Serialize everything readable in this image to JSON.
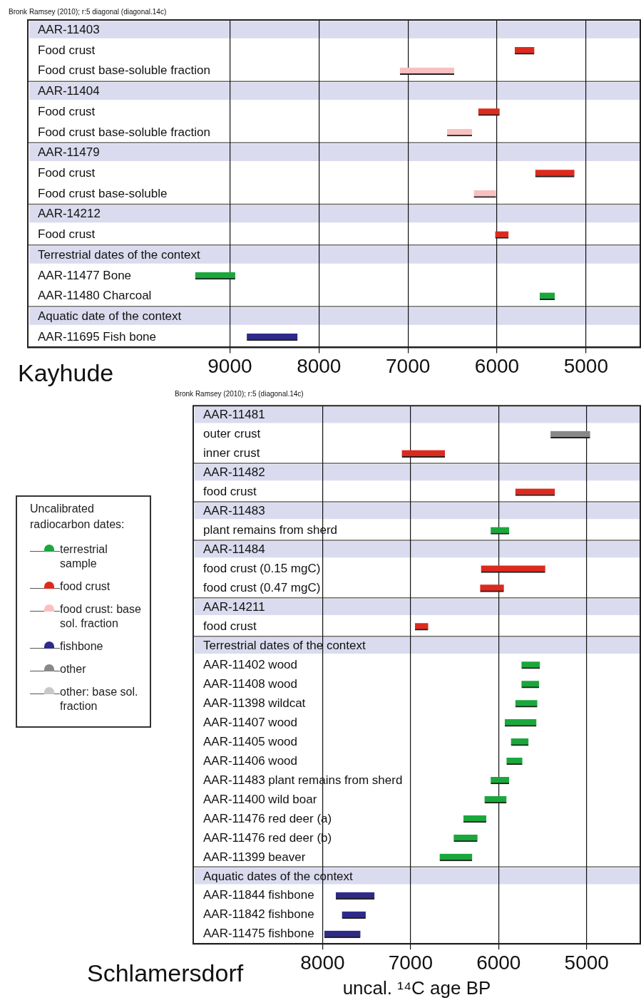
{
  "chart_data": [
    {
      "type": "bar",
      "orientation": "horizontal",
      "title": "Kayhude",
      "subtitle": "Bronk Ramsey (2010); r:5 diagonal (diagonal.14c)",
      "categories": [
        "AAR-11403",
        "Food crust",
        "Food crust base-soluble fraction",
        "AAR-11404",
        "Food crust",
        "Food crust base-soluble fraction",
        "AAR-11479",
        "Food crust",
        "Food crust base-soluble",
        "AAR-14212",
        "Food crust",
        "Terrestrial dates of the context",
        "AAR-11477 Bone",
        "AAR-11480 Charcoal",
        "Aquatic date of the context",
        "AAR-11695 Fish bone"
      ],
      "series": [
        {
          "color": "#dd2a1e",
          "values": [
            null,
            220,
            null,
            null,
            240,
            null,
            null,
            440,
            null,
            null,
            150,
            null,
            null,
            null,
            null,
            null
          ],
          "base": [
            null,
            5580,
            null,
            null,
            5970,
            null,
            null,
            5130,
            null,
            null,
            5870,
            null,
            null,
            null,
            null,
            null
          ]
        },
        {
          "color": "#f9c0c0",
          "values": [
            null,
            null,
            610,
            null,
            null,
            280,
            null,
            null,
            250,
            null,
            null,
            null,
            null,
            null,
            null,
            null
          ],
          "base": [
            null,
            null,
            6480,
            null,
            null,
            6280,
            null,
            null,
            6010,
            null,
            null,
            null,
            null,
            null,
            null,
            null
          ]
        },
        {
          "color": "#1aa83c",
          "values": [
            null,
            null,
            null,
            null,
            null,
            null,
            null,
            null,
            null,
            null,
            null,
            null,
            450,
            170,
            null,
            null
          ],
          "base": [
            null,
            null,
            null,
            null,
            null,
            null,
            null,
            null,
            null,
            null,
            null,
            null,
            8940,
            5350,
            null,
            null
          ]
        },
        {
          "color": "#2e2a8a",
          "values": [
            null,
            null,
            null,
            null,
            null,
            null,
            null,
            null,
            null,
            null,
            null,
            null,
            null,
            null,
            null,
            570
          ],
          "base": [
            null,
            null,
            null,
            null,
            null,
            null,
            null,
            null,
            null,
            null,
            null,
            null,
            null,
            null,
            null,
            8240
          ]
        }
      ],
      "xlim": [
        11270,
        4390
      ],
      "xticks": [
        9000,
        8000,
        7000,
        6000,
        5000
      ],
      "grid": "x",
      "legend": false
    },
    {
      "type": "bar",
      "orientation": "horizontal",
      "title": "Schlamersdorf",
      "subtitle": "Bronk Ramsey (2010); r:5 (diagonal.14c)",
      "xlabel": "uncal. ¹⁴C age BP",
      "legend_title": "Uncalibrated radiocarbon dates:",
      "categories": [
        "AAR-11481",
        "outer crust",
        "inner crust",
        "AAR-11482",
        "food crust",
        "AAR-11483",
        "plant remains from sherd",
        "AAR-11484",
        "food crust (0.15 mgC)",
        "food crust (0.47 mgC)",
        "AAR-14211",
        "food crust",
        "Terrestrial dates of the context",
        "AAR-11402 wood",
        "AAR-11408 wood",
        "AAR-11398 wildcat",
        "AAR-11407 wood",
        "AAR-11405 wood",
        "AAR-11406 wood",
        "AAR-11483 plant remains from sherd",
        "AAR-11400 wild boar",
        "AAR-11476 red deer (a)",
        "AAR-11476 red deer (b)",
        "AAR-11399 beaver",
        "Aquatic dates of the context",
        "AAR-11844 fishbone",
        "AAR-11842 fishbone",
        "AAR-11475 fishbone"
      ],
      "series": [
        {
          "name": "terrestrial sample",
          "color": "#1aa83c",
          "values": [
            null,
            null,
            null,
            null,
            null,
            null,
            210,
            null,
            null,
            null,
            null,
            null,
            null,
            210,
            200,
            250,
            360,
            200,
            180,
            210,
            250,
            260,
            270,
            370,
            null,
            null,
            null,
            null
          ],
          "base": [
            null,
            null,
            null,
            null,
            null,
            null,
            5880,
            null,
            null,
            null,
            null,
            null,
            null,
            5530,
            5540,
            5560,
            5570,
            5660,
            5730,
            5880,
            5910,
            6140,
            6240,
            6300,
            null,
            null,
            null,
            null
          ]
        },
        {
          "name": "food crust",
          "color": "#dd2a1e",
          "values": [
            null,
            null,
            490,
            null,
            450,
            null,
            null,
            null,
            730,
            270,
            null,
            150,
            null,
            null,
            null,
            null,
            null,
            null,
            null,
            null,
            null,
            null,
            null,
            null,
            null,
            null,
            null,
            null
          ],
          "base": [
            null,
            null,
            6610,
            null,
            5360,
            null,
            null,
            null,
            5470,
            5940,
            null,
            6800,
            null,
            null,
            null,
            null,
            null,
            null,
            null,
            null,
            null,
            null,
            null,
            null,
            null,
            null,
            null,
            null
          ]
        },
        {
          "name": "food crust: base sol. fraction",
          "color": "#f9c0c0",
          "values": [
            null,
            null,
            null,
            null,
            null,
            null,
            null,
            null,
            null,
            null,
            null,
            null,
            null,
            null,
            null,
            null,
            null,
            null,
            null,
            null,
            null,
            null,
            null,
            null,
            null,
            null,
            null,
            null
          ]
        },
        {
          "name": "fishbone",
          "color": "#2e2a8a",
          "values": [
            null,
            null,
            null,
            null,
            null,
            null,
            null,
            null,
            null,
            null,
            null,
            null,
            null,
            null,
            null,
            null,
            null,
            null,
            null,
            null,
            null,
            null,
            null,
            null,
            null,
            440,
            270,
            410
          ],
          "base": [
            null,
            null,
            null,
            null,
            null,
            null,
            null,
            null,
            null,
            null,
            null,
            null,
            null,
            null,
            null,
            null,
            null,
            null,
            null,
            null,
            null,
            null,
            null,
            null,
            null,
            7410,
            7510,
            7570
          ]
        },
        {
          "name": "other",
          "color": "#888888",
          "values": [
            null,
            450,
            null,
            null,
            null,
            null,
            null,
            null,
            null,
            null,
            null,
            null,
            null,
            null,
            null,
            null,
            null,
            null,
            null,
            null,
            null,
            null,
            null,
            null,
            null,
            null,
            null,
            null
          ],
          "base": [
            null,
            4960,
            null,
            null,
            null,
            null,
            null,
            null,
            null,
            null,
            null,
            null,
            null,
            null,
            null,
            null,
            null,
            null,
            null,
            null,
            null,
            null,
            null,
            null,
            null,
            null,
            null,
            null
          ]
        },
        {
          "name": "other: base sol. fraction",
          "color": "#c8c8c8",
          "values": [
            null,
            null,
            null,
            null,
            null,
            null,
            null,
            null,
            null,
            null,
            null,
            null,
            null,
            null,
            null,
            null,
            null,
            null,
            null,
            null,
            null,
            null,
            null,
            null,
            null,
            null,
            null,
            null
          ]
        }
      ],
      "xlim": [
        9470,
        4390
      ],
      "xticks": [
        8000,
        7000,
        6000,
        5000
      ],
      "grid": "x",
      "legend": "left"
    }
  ]
}
